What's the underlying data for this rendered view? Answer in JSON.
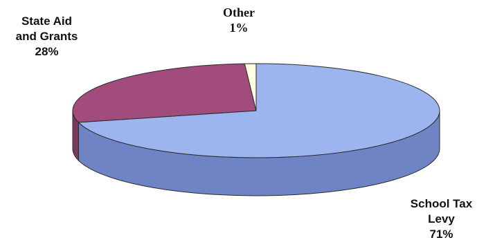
{
  "chart_data": {
    "type": "pie",
    "style": "3d-tilted",
    "slices": [
      {
        "label": "School Tax Levy",
        "value": 71,
        "display": [
          "School Tax",
          "Levy",
          "71%"
        ],
        "color": "#9DB5EE"
      },
      {
        "label": "State Aid and Grants",
        "value": 28,
        "display": [
          "State Aid",
          "and Grants",
          "28%"
        ],
        "color": "#A24C7E"
      },
      {
        "label": "Other",
        "value": 1,
        "display": [
          "Other",
          "1%"
        ],
        "color": "#FFFFE0"
      }
    ],
    "side_colors": {
      "School Tax Levy": "#6F84C4",
      "State Aid and Grants": "#7A3A60"
    }
  }
}
